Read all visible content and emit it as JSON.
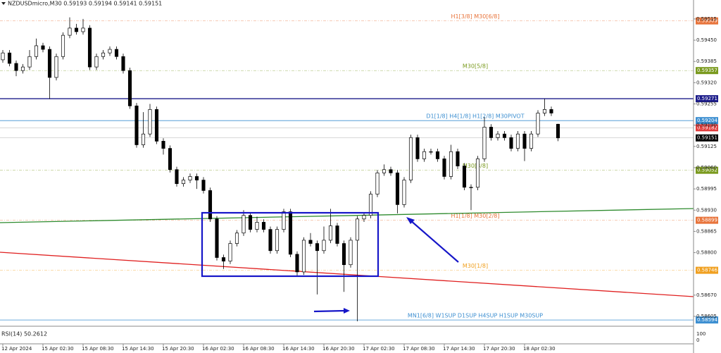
{
  "chart_data": {
    "type": "candlestick",
    "title": "NZDUSDmicro,M30  0.59193 0.59194 0.59141 0.59151",
    "ylim": [
      0.58577,
      0.59573
    ],
    "yticks": [
      0.59515,
      {
        "value": 0.5945,
        "label": "0.59450"
      },
      0.59385,
      {
        "value": 0.5932,
        "label": "0.59320"
      },
      0.59255,
      {
        "value": 0.5919,
        "label": "0.59190"
      },
      0.59125,
      {
        "value": 0.5906,
        "label": "0.59060"
      },
      0.58995,
      {
        "value": 0.5893,
        "label": "0.58930"
      },
      0.58865,
      {
        "value": 0.588,
        "label": "0.58800"
      },
      {
        "value": 0.5867,
        "label": "0.58670"
      },
      0.58605
    ],
    "xlabels": [
      "12 Apr 2024",
      "15 Apr 02:30",
      "15 Apr 08:30",
      "15 Apr 14:30",
      "15 Apr 20:30",
      "16 Apr 02:30",
      "16 Apr 08:30",
      "16 Apr 14:30",
      "16 Apr 20:30",
      "17 Apr 02:30",
      "17 Apr 08:30",
      "17 Apr 14:30",
      "17 Apr 20:30",
      "18 Apr 02:30"
    ],
    "series": {
      "open": [
        0.5939,
        0.59411,
        0.59379,
        0.59357,
        0.59368,
        0.594,
        0.59433,
        0.59422,
        0.59336,
        0.594,
        0.59465,
        0.59487,
        0.59476,
        0.59487,
        0.59368,
        0.594,
        0.59411,
        0.59422,
        0.594,
        0.59357,
        0.59249,
        0.5913,
        0.59163,
        0.59238,
        0.59141,
        0.59119,
        0.59054,
        0.59011,
        0.59022,
        0.59033,
        0.59022,
        0.5899,
        0.58903,
        0.58785,
        0.58774,
        0.58828,
        0.5886,
        0.58914,
        0.58871,
        0.58893,
        0.58871,
        0.58806,
        0.58871,
        0.58925,
        0.58795,
        0.58741,
        0.58838,
        0.58828,
        0.58806,
        0.58838,
        0.58882,
        0.58828,
        0.58763,
        0.58838,
        0.58903,
        0.58914,
        0.58979,
        0.59044,
        0.59054,
        0.59044,
        0.58947,
        0.59022,
        0.59152,
        0.59087,
        0.59109,
        0.59109,
        0.59087,
        0.59033,
        0.59109,
        0.59065,
        0.59,
        0.59,
        0.59087,
        0.59184,
        0.59152,
        0.59163,
        0.59152,
        0.59119,
        0.59163,
        0.59119,
        0.59163,
        0.59227,
        0.59238,
        0.59193
      ],
      "high": [
        0.5942,
        0.5942,
        0.59388,
        0.59377,
        0.5942,
        0.59455,
        0.59442,
        0.59431,
        0.59409,
        0.59474,
        0.5952,
        0.595,
        0.59515,
        0.59496,
        0.59409,
        0.5942,
        0.59431,
        0.59431,
        0.59409,
        0.59366,
        0.59258,
        0.5923,
        0.59255,
        0.59247,
        0.5915,
        0.59128,
        0.59063,
        0.59031,
        0.59042,
        0.59042,
        0.59031,
        0.58999,
        0.58912,
        0.58794,
        0.58837,
        0.58869,
        0.5893,
        0.58923,
        0.5891,
        0.58902,
        0.5888,
        0.5888,
        0.58934,
        0.58934,
        0.58804,
        0.58847,
        0.5886,
        0.58837,
        0.5888,
        0.58934,
        0.58891,
        0.58837,
        0.58847,
        0.58912,
        0.58923,
        0.58988,
        0.59053,
        0.5907,
        0.59063,
        0.59053,
        0.59031,
        0.59161,
        0.59161,
        0.59118,
        0.59118,
        0.59118,
        0.59096,
        0.5913,
        0.59118,
        0.59074,
        0.59009,
        0.59096,
        0.59215,
        0.59193,
        0.59172,
        0.59172,
        0.59161,
        0.59172,
        0.59172,
        0.59172,
        0.59236,
        0.59271,
        0.59247,
        0.59194
      ],
      "low": [
        0.59381,
        0.5937,
        0.5934,
        0.59348,
        0.59359,
        0.59391,
        0.59413,
        0.5927,
        0.59327,
        0.59391,
        0.59456,
        0.59467,
        0.59467,
        0.59359,
        0.59359,
        0.59391,
        0.59402,
        0.59391,
        0.59348,
        0.5924,
        0.59121,
        0.59121,
        0.59154,
        0.59132,
        0.591,
        0.59045,
        0.59002,
        0.59002,
        0.59013,
        0.58995,
        0.58981,
        0.58894,
        0.58776,
        0.5875,
        0.58765,
        0.58819,
        0.58851,
        0.58862,
        0.58862,
        0.58862,
        0.58797,
        0.58797,
        0.58862,
        0.58786,
        0.5873,
        0.58732,
        0.58819,
        0.58672,
        0.58797,
        0.58829,
        0.58819,
        0.5868,
        0.58754,
        0.5859,
        0.58894,
        0.58905,
        0.5897,
        0.59035,
        0.59035,
        0.5892,
        0.58938,
        0.59013,
        0.59078,
        0.59078,
        0.591,
        0.59078,
        0.59024,
        0.59024,
        0.59056,
        0.58991,
        0.5893,
        0.58991,
        0.59078,
        0.59143,
        0.59143,
        0.59143,
        0.5911,
        0.5911,
        0.5908,
        0.5911,
        0.59154,
        0.59218,
        0.59218,
        0.59141
      ],
      "close": [
        0.59411,
        0.59379,
        0.59357,
        0.59368,
        0.594,
        0.59433,
        0.59422,
        0.59336,
        0.594,
        0.59465,
        0.59487,
        0.59476,
        0.59487,
        0.59368,
        0.594,
        0.59411,
        0.59422,
        0.594,
        0.59357,
        0.59249,
        0.5913,
        0.59163,
        0.59238,
        0.59141,
        0.59119,
        0.59054,
        0.59011,
        0.59022,
        0.59033,
        0.59022,
        0.5899,
        0.58903,
        0.58785,
        0.58774,
        0.58828,
        0.5886,
        0.58914,
        0.58871,
        0.58893,
        0.58871,
        0.58806,
        0.58871,
        0.58925,
        0.58795,
        0.58741,
        0.58838,
        0.58828,
        0.58806,
        0.58838,
        0.58882,
        0.58828,
        0.58763,
        0.58838,
        0.58903,
        0.58914,
        0.58979,
        0.59044,
        0.59054,
        0.59044,
        0.58947,
        0.59022,
        0.59152,
        0.59087,
        0.59109,
        0.59109,
        0.59087,
        0.59033,
        0.59109,
        0.59065,
        0.59,
        0.59,
        0.59087,
        0.59184,
        0.59152,
        0.59163,
        0.59152,
        0.59119,
        0.59163,
        0.59119,
        0.59163,
        0.59227,
        0.59238,
        0.59227,
        0.59151
      ]
    },
    "levels": [
      {
        "value": 0.59509,
        "label": "H1[3/8] M30[6/8]",
        "color": "#e8743b",
        "line": "dashed"
      },
      {
        "value": 0.59357,
        "label": "M30[5/8]",
        "color": "#7a9a1e",
        "line": "dashed"
      },
      {
        "value": 0.59271,
        "color": "#1c1c8a",
        "line": "solid"
      },
      {
        "value": 0.59204,
        "label": "D1[1/8] H4[1/8] H1[2/8] M30PIVOT",
        "color": "#3d8fd1",
        "line": "solid"
      },
      {
        "value": 0.59182,
        "color": "#e03b3b",
        "line": "faint"
      },
      {
        "value": 0.59151,
        "color": "#000000",
        "line": "faint"
      },
      {
        "value": 0.59052,
        "label": "M30[3/8]",
        "color": "#7a9a1e",
        "line": "dashed"
      },
      {
        "value": 0.58899,
        "label": "H1[1/8] M30[2/8]",
        "color": "#e8743b",
        "line": "dashed"
      },
      {
        "value": 0.58746,
        "label": "M30[1/8]",
        "color": "#f0a020",
        "line": "dashed"
      },
      {
        "value": 0.58594,
        "label": "MN1[6/8] W1SUP D1SUP H4SUP H1SUP M30SUP",
        "color": "#3d8fd1",
        "line": "solid"
      }
    ],
    "rsi": {
      "label": "RSI(14) 50.2612",
      "ticks": [
        "100",
        "0"
      ]
    }
  }
}
